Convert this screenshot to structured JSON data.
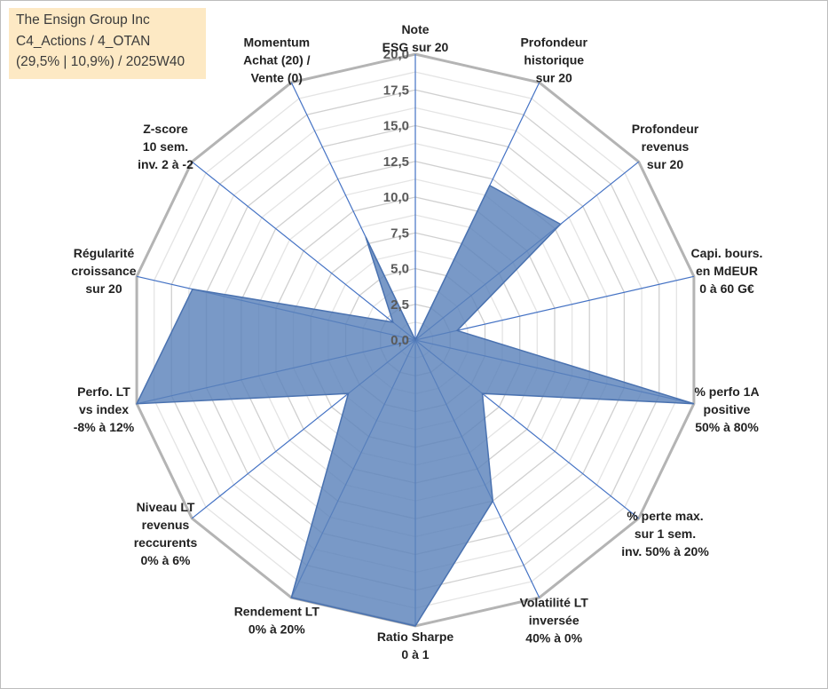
{
  "info_box": {
    "line1": "The Ensign Group Inc",
    "line2": "C4_Actions / 4_OTAN",
    "line3": "(29,5% | 10,9%) / 2025W40"
  },
  "colors": {
    "fill": "#5b82bb",
    "stroke": "#4a72b0",
    "spoke": "#4472c4",
    "outer_ring": "#b4b4b4",
    "inner_ring": "#d9d9d9",
    "info_bg": "#fde9c4"
  },
  "chart_data": {
    "type": "radar",
    "rmin": 0,
    "rmax": 20,
    "grid": true,
    "ticks": [
      "0,0",
      "2,5",
      "5,0",
      "7,5",
      "10,0",
      "12,5",
      "15,0",
      "17,5",
      "20,0"
    ],
    "axes": [
      {
        "label": [
          "Note",
          "ESG sur 20"
        ],
        "value": 0
      },
      {
        "label": [
          "Profondeur",
          "historique",
          "sur 20"
        ],
        "value": 12
      },
      {
        "label": [
          "Profondeur",
          "revenus",
          "sur 20"
        ],
        "value": 13
      },
      {
        "label": [
          "Capi. bours.",
          "en MdEUR",
          "0 à 60 G€"
        ],
        "value": 3
      },
      {
        "label": [
          "% perfo 1A",
          "positive",
          "50% à 80%"
        ],
        "value": 20
      },
      {
        "label": [
          "% perte max.",
          "sur 1 sem.",
          "inv. 50% à 20%"
        ],
        "value": 6
      },
      {
        "label": [
          "Volatilité LT",
          "inversée",
          "40% à 0%"
        ],
        "value": 12.5
      },
      {
        "label": [
          "Ratio Sharpe",
          "0 à 1"
        ],
        "value": 20
      },
      {
        "label": [
          "Rendement LT",
          "0% à 20%"
        ],
        "value": 20
      },
      {
        "label": [
          "Niveau LT",
          "revenus",
          "reccurents",
          "0% à 6%"
        ],
        "value": 6
      },
      {
        "label": [
          "Perfo. LT",
          "vs index",
          "-8% à 12%"
        ],
        "value": 20
      },
      {
        "label": [
          "Régularité",
          "croissance",
          "sur 20"
        ],
        "value": 16
      },
      {
        "label": [
          "Z-score",
          "10 sem.",
          "inv. 2 à -2"
        ],
        "value": 2
      },
      {
        "label": [
          "Momentum",
          "Achat (20) /",
          "Vente (0)"
        ],
        "value": 8
      }
    ]
  }
}
